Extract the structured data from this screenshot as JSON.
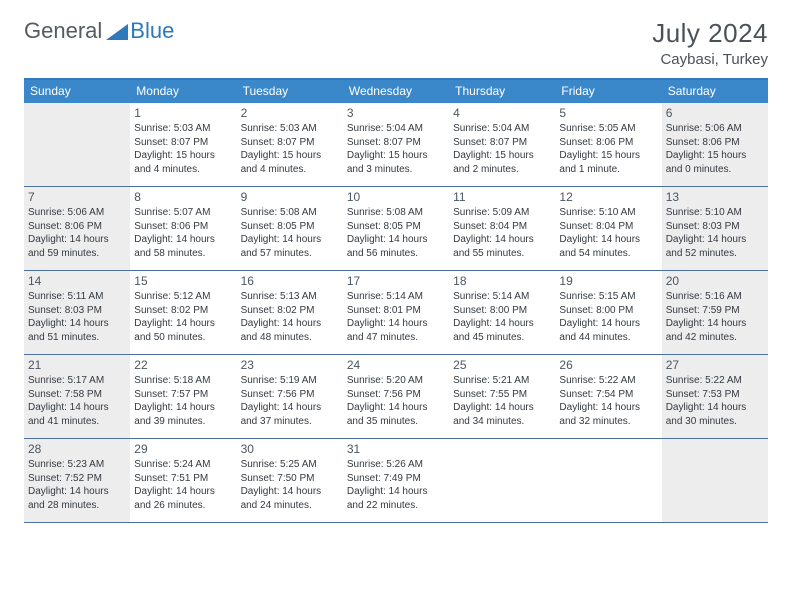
{
  "logo": {
    "general": "General",
    "blue": "Blue"
  },
  "title": "July 2024",
  "location": "Caybasi, Turkey",
  "colors": {
    "headerBar": "#3a88ca",
    "headerBorder": "#2f7ac0",
    "cellBorder": "#4a6fa0",
    "shaded": "#ededee",
    "text": "#343a40",
    "logoBlue": "#2f78b9",
    "titleText": "#4a5159"
  },
  "dayNames": [
    "Sunday",
    "Monday",
    "Tuesday",
    "Wednesday",
    "Thursday",
    "Friday",
    "Saturday"
  ],
  "weeks": [
    [
      {
        "shaded": true
      },
      {
        "day": "1",
        "sunrise": "5:03 AM",
        "sunset": "8:07 PM",
        "daylight": "15 hours and 4 minutes."
      },
      {
        "day": "2",
        "sunrise": "5:03 AM",
        "sunset": "8:07 PM",
        "daylight": "15 hours and 4 minutes."
      },
      {
        "day": "3",
        "sunrise": "5:04 AM",
        "sunset": "8:07 PM",
        "daylight": "15 hours and 3 minutes."
      },
      {
        "day": "4",
        "sunrise": "5:04 AM",
        "sunset": "8:07 PM",
        "daylight": "15 hours and 2 minutes."
      },
      {
        "day": "5",
        "sunrise": "5:05 AM",
        "sunset": "8:06 PM",
        "daylight": "15 hours and 1 minute."
      },
      {
        "day": "6",
        "shaded": true,
        "sunrise": "5:06 AM",
        "sunset": "8:06 PM",
        "daylight": "15 hours and 0 minutes."
      }
    ],
    [
      {
        "day": "7",
        "shaded": true,
        "sunrise": "5:06 AM",
        "sunset": "8:06 PM",
        "daylight": "14 hours and 59 minutes."
      },
      {
        "day": "8",
        "sunrise": "5:07 AM",
        "sunset": "8:06 PM",
        "daylight": "14 hours and 58 minutes."
      },
      {
        "day": "9",
        "sunrise": "5:08 AM",
        "sunset": "8:05 PM",
        "daylight": "14 hours and 57 minutes."
      },
      {
        "day": "10",
        "sunrise": "5:08 AM",
        "sunset": "8:05 PM",
        "daylight": "14 hours and 56 minutes."
      },
      {
        "day": "11",
        "sunrise": "5:09 AM",
        "sunset": "8:04 PM",
        "daylight": "14 hours and 55 minutes."
      },
      {
        "day": "12",
        "sunrise": "5:10 AM",
        "sunset": "8:04 PM",
        "daylight": "14 hours and 54 minutes."
      },
      {
        "day": "13",
        "shaded": true,
        "sunrise": "5:10 AM",
        "sunset": "8:03 PM",
        "daylight": "14 hours and 52 minutes."
      }
    ],
    [
      {
        "day": "14",
        "shaded": true,
        "sunrise": "5:11 AM",
        "sunset": "8:03 PM",
        "daylight": "14 hours and 51 minutes."
      },
      {
        "day": "15",
        "sunrise": "5:12 AM",
        "sunset": "8:02 PM",
        "daylight": "14 hours and 50 minutes."
      },
      {
        "day": "16",
        "sunrise": "5:13 AM",
        "sunset": "8:02 PM",
        "daylight": "14 hours and 48 minutes."
      },
      {
        "day": "17",
        "sunrise": "5:14 AM",
        "sunset": "8:01 PM",
        "daylight": "14 hours and 47 minutes."
      },
      {
        "day": "18",
        "sunrise": "5:14 AM",
        "sunset": "8:00 PM",
        "daylight": "14 hours and 45 minutes."
      },
      {
        "day": "19",
        "sunrise": "5:15 AM",
        "sunset": "8:00 PM",
        "daylight": "14 hours and 44 minutes."
      },
      {
        "day": "20",
        "shaded": true,
        "sunrise": "5:16 AM",
        "sunset": "7:59 PM",
        "daylight": "14 hours and 42 minutes."
      }
    ],
    [
      {
        "day": "21",
        "shaded": true,
        "sunrise": "5:17 AM",
        "sunset": "7:58 PM",
        "daylight": "14 hours and 41 minutes."
      },
      {
        "day": "22",
        "sunrise": "5:18 AM",
        "sunset": "7:57 PM",
        "daylight": "14 hours and 39 minutes."
      },
      {
        "day": "23",
        "sunrise": "5:19 AM",
        "sunset": "7:56 PM",
        "daylight": "14 hours and 37 minutes."
      },
      {
        "day": "24",
        "sunrise": "5:20 AM",
        "sunset": "7:56 PM",
        "daylight": "14 hours and 35 minutes."
      },
      {
        "day": "25",
        "sunrise": "5:21 AM",
        "sunset": "7:55 PM",
        "daylight": "14 hours and 34 minutes."
      },
      {
        "day": "26",
        "sunrise": "5:22 AM",
        "sunset": "7:54 PM",
        "daylight": "14 hours and 32 minutes."
      },
      {
        "day": "27",
        "shaded": true,
        "sunrise": "5:22 AM",
        "sunset": "7:53 PM",
        "daylight": "14 hours and 30 minutes."
      }
    ],
    [
      {
        "day": "28",
        "shaded": true,
        "sunrise": "5:23 AM",
        "sunset": "7:52 PM",
        "daylight": "14 hours and 28 minutes."
      },
      {
        "day": "29",
        "sunrise": "5:24 AM",
        "sunset": "7:51 PM",
        "daylight": "14 hours and 26 minutes."
      },
      {
        "day": "30",
        "sunrise": "5:25 AM",
        "sunset": "7:50 PM",
        "daylight": "14 hours and 24 minutes."
      },
      {
        "day": "31",
        "sunrise": "5:26 AM",
        "sunset": "7:49 PM",
        "daylight": "14 hours and 22 minutes."
      },
      {},
      {},
      {
        "shaded": true
      }
    ]
  ]
}
